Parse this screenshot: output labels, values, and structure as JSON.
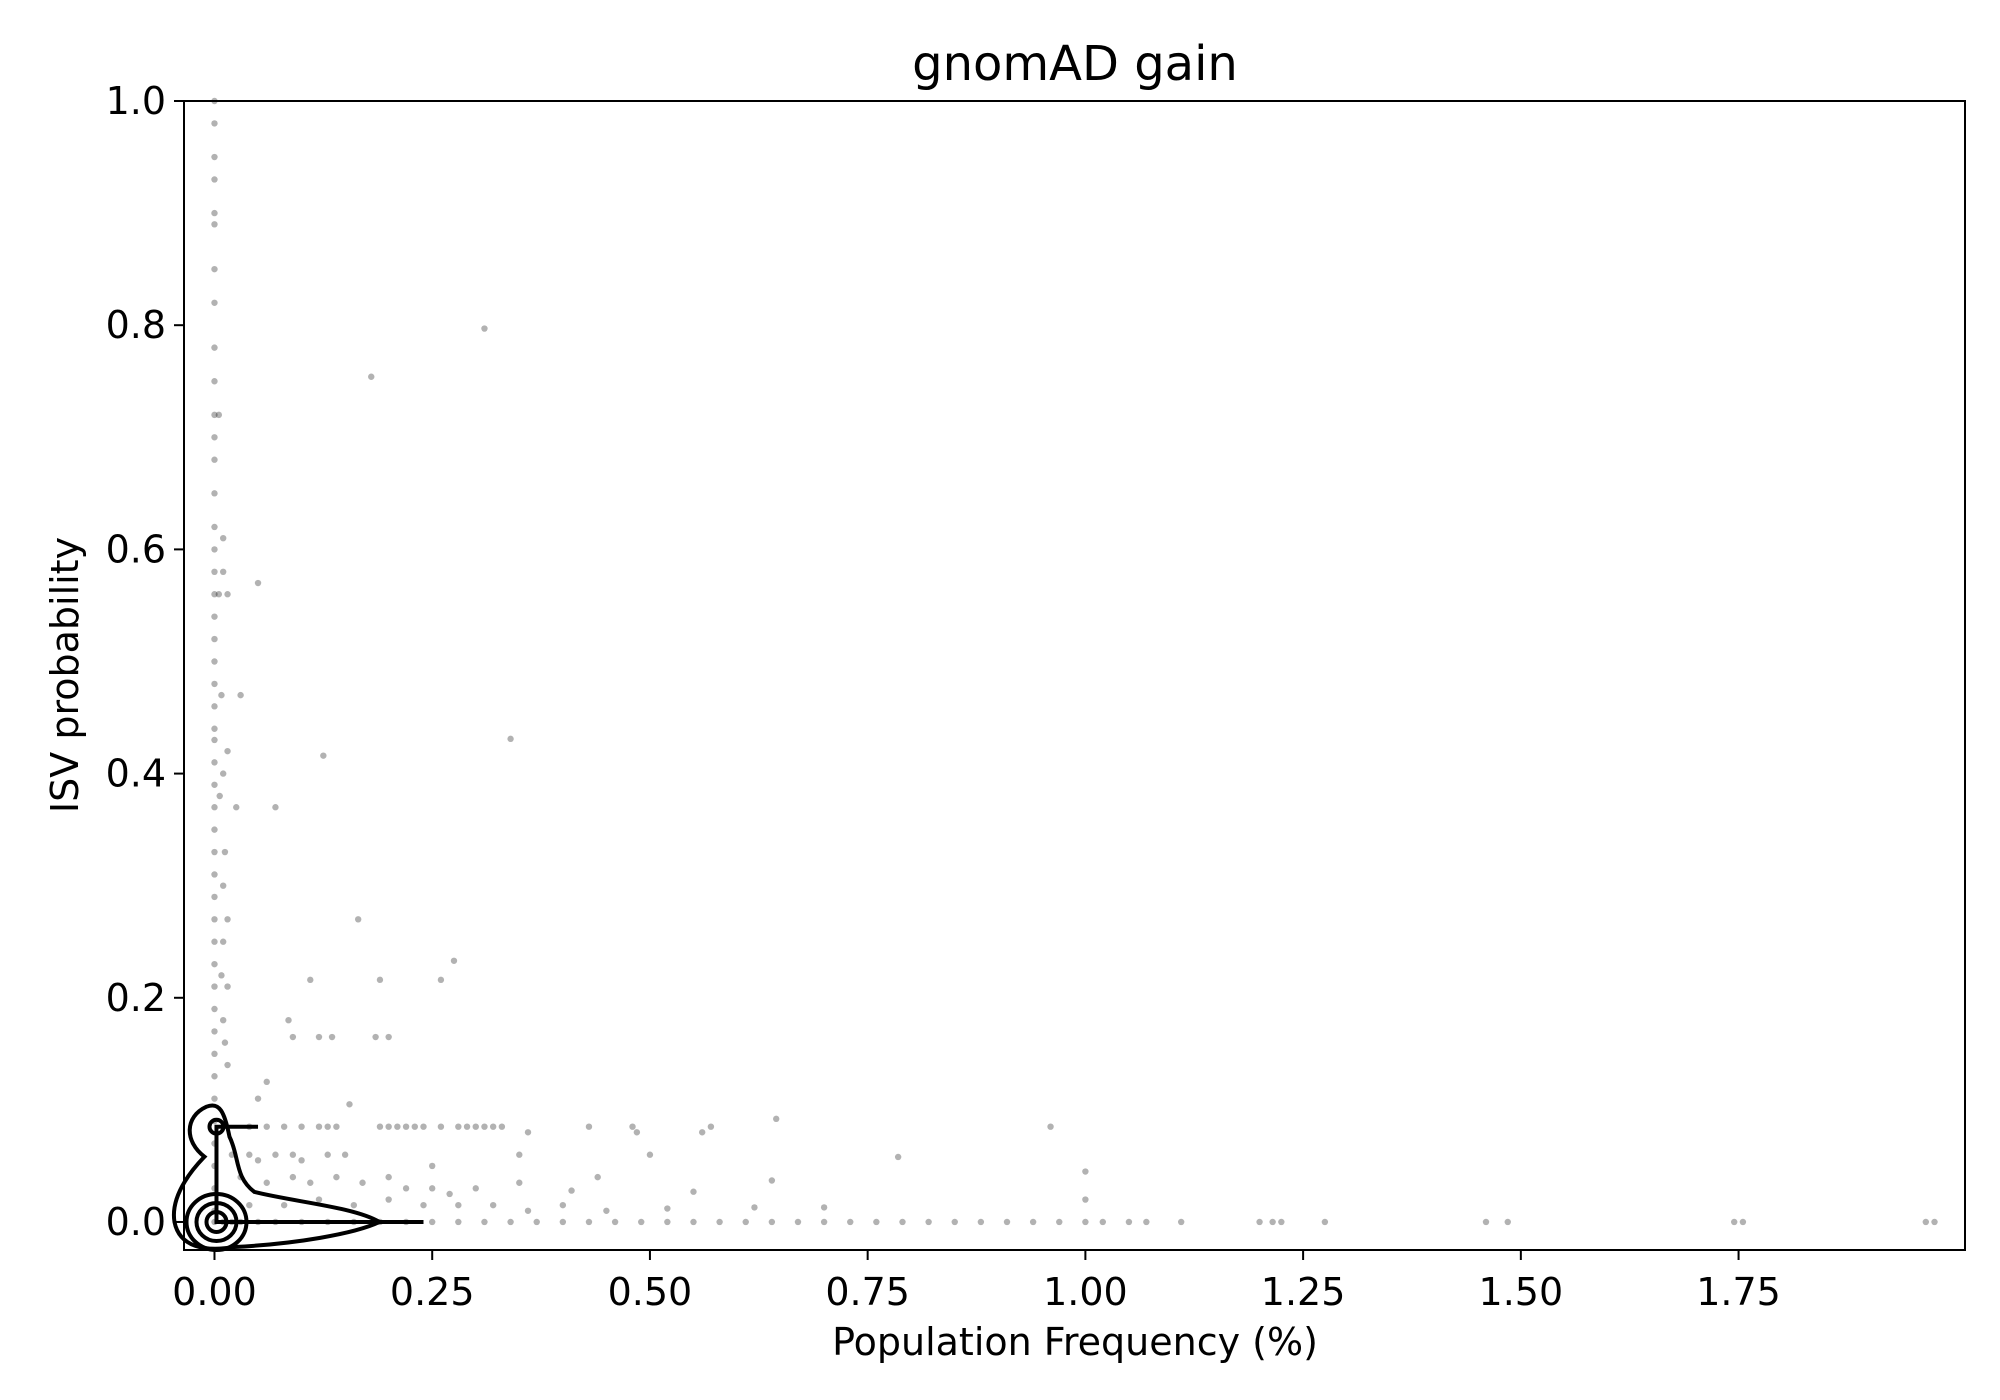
{
  "chart_data": {
    "type": "scatter",
    "title": "gnomAD gain",
    "xlabel": "Population Frequency (%)",
    "ylabel": "ISV probability",
    "xlim": [
      -0.035,
      2.01
    ],
    "ylim": [
      -0.025,
      1.0
    ],
    "xticks": [
      0.0,
      0.25,
      0.5,
      0.75,
      1.0,
      1.25,
      1.5,
      1.75
    ],
    "xtick_labels": [
      "0.00",
      "0.25",
      "0.50",
      "0.75",
      "1.00",
      "1.25",
      "1.50",
      "1.75"
    ],
    "yticks": [
      0.0,
      0.2,
      0.4,
      0.6,
      0.8,
      1.0
    ],
    "ytick_labels": [
      "0.0",
      "0.2",
      "0.4",
      "0.6",
      "0.8",
      "1.0"
    ],
    "grid": false,
    "legend": "none",
    "marker_color": "#000000",
    "marker_opacity": 0.3,
    "overlay": "kde-contours",
    "points": [
      [
        0.0,
        1.0
      ],
      [
        0.0,
        0.98
      ],
      [
        0.0,
        0.95
      ],
      [
        0.0,
        0.93
      ],
      [
        0.0,
        0.9
      ],
      [
        0.0,
        0.89
      ],
      [
        0.0,
        0.85
      ],
      [
        0.0,
        0.82
      ],
      [
        0.0,
        0.78
      ],
      [
        0.0,
        0.75
      ],
      [
        0.0,
        0.72
      ],
      [
        0.0,
        0.7
      ],
      [
        0.0,
        0.68
      ],
      [
        0.0,
        0.65
      ],
      [
        0.0,
        0.62
      ],
      [
        0.0,
        0.6
      ],
      [
        0.0,
        0.58
      ],
      [
        0.0,
        0.56
      ],
      [
        0.0,
        0.54
      ],
      [
        0.0,
        0.52
      ],
      [
        0.0,
        0.5
      ],
      [
        0.0,
        0.48
      ],
      [
        0.0,
        0.46
      ],
      [
        0.0,
        0.44
      ],
      [
        0.0,
        0.43
      ],
      [
        0.0,
        0.41
      ],
      [
        0.0,
        0.39
      ],
      [
        0.0,
        0.37
      ],
      [
        0.0,
        0.35
      ],
      [
        0.0,
        0.33
      ],
      [
        0.0,
        0.31
      ],
      [
        0.0,
        0.29
      ],
      [
        0.0,
        0.27
      ],
      [
        0.0,
        0.25
      ],
      [
        0.0,
        0.23
      ],
      [
        0.0,
        0.21
      ],
      [
        0.0,
        0.19
      ],
      [
        0.0,
        0.17
      ],
      [
        0.0,
        0.15
      ],
      [
        0.0,
        0.13
      ],
      [
        0.0,
        0.11
      ],
      [
        0.0,
        0.09
      ],
      [
        0.0,
        0.07
      ],
      [
        0.0,
        0.05
      ],
      [
        0.0,
        0.03
      ],
      [
        0.0,
        0.01
      ],
      [
        0.005,
        0.72
      ],
      [
        0.005,
        0.56
      ],
      [
        0.01,
        0.61
      ],
      [
        0.008,
        0.47
      ],
      [
        0.01,
        0.58
      ],
      [
        0.015,
        0.56
      ],
      [
        0.01,
        0.4
      ],
      [
        0.015,
        0.42
      ],
      [
        0.006,
        0.38
      ],
      [
        0.012,
        0.33
      ],
      [
        0.01,
        0.3
      ],
      [
        0.015,
        0.27
      ],
      [
        0.01,
        0.25
      ],
      [
        0.008,
        0.22
      ],
      [
        0.015,
        0.21
      ],
      [
        0.01,
        0.18
      ],
      [
        0.012,
        0.16
      ],
      [
        0.015,
        0.14
      ],
      [
        0.03,
        0.47
      ],
      [
        0.025,
        0.37
      ],
      [
        0.05,
        0.57
      ],
      [
        0.07,
        0.37
      ],
      [
        0.31,
        0.797
      ],
      [
        0.18,
        0.754
      ],
      [
        0.125,
        0.416
      ],
      [
        0.34,
        0.431
      ],
      [
        0.165,
        0.27
      ],
      [
        0.275,
        0.233
      ],
      [
        0.26,
        0.216
      ],
      [
        0.19,
        0.216
      ],
      [
        0.11,
        0.216
      ],
      [
        0.085,
        0.18
      ],
      [
        0.09,
        0.165
      ],
      [
        0.12,
        0.165
      ],
      [
        0.135,
        0.165
      ],
      [
        0.185,
        0.165
      ],
      [
        0.2,
        0.165
      ],
      [
        0.06,
        0.125
      ],
      [
        0.05,
        0.11
      ],
      [
        0.155,
        0.105
      ],
      [
        0.04,
        0.085
      ],
      [
        0.06,
        0.085
      ],
      [
        0.08,
        0.085
      ],
      [
        0.1,
        0.085
      ],
      [
        0.12,
        0.085
      ],
      [
        0.13,
        0.085
      ],
      [
        0.14,
        0.085
      ],
      [
        0.19,
        0.085
      ],
      [
        0.2,
        0.085
      ],
      [
        0.21,
        0.085
      ],
      [
        0.22,
        0.085
      ],
      [
        0.23,
        0.085
      ],
      [
        0.24,
        0.085
      ],
      [
        0.26,
        0.085
      ],
      [
        0.28,
        0.085
      ],
      [
        0.29,
        0.085
      ],
      [
        0.3,
        0.085
      ],
      [
        0.31,
        0.085
      ],
      [
        0.32,
        0.085
      ],
      [
        0.33,
        0.085
      ],
      [
        0.36,
        0.08
      ],
      [
        0.43,
        0.085
      ],
      [
        0.48,
        0.085
      ],
      [
        0.485,
        0.08
      ],
      [
        0.56,
        0.08
      ],
      [
        0.57,
        0.085
      ],
      [
        0.645,
        0.092
      ],
      [
        0.96,
        0.085
      ],
      [
        0.02,
        0.06
      ],
      [
        0.04,
        0.06
      ],
      [
        0.05,
        0.055
      ],
      [
        0.07,
        0.06
      ],
      [
        0.09,
        0.06
      ],
      [
        0.1,
        0.055
      ],
      [
        0.13,
        0.06
      ],
      [
        0.15,
        0.06
      ],
      [
        0.25,
        0.05
      ],
      [
        0.35,
        0.06
      ],
      [
        0.5,
        0.06
      ],
      [
        0.785,
        0.058
      ],
      [
        0.03,
        0.04
      ],
      [
        0.06,
        0.035
      ],
      [
        0.09,
        0.04
      ],
      [
        0.11,
        0.035
      ],
      [
        0.14,
        0.04
      ],
      [
        0.17,
        0.035
      ],
      [
        0.2,
        0.04
      ],
      [
        0.22,
        0.03
      ],
      [
        0.25,
        0.03
      ],
      [
        0.27,
        0.025
      ],
      [
        0.3,
        0.03
      ],
      [
        0.35,
        0.035
      ],
      [
        0.41,
        0.028
      ],
      [
        0.44,
        0.04
      ],
      [
        0.55,
        0.027
      ],
      [
        0.64,
        0.037
      ],
      [
        1.0,
        0.045
      ],
      [
        0.04,
        0.015
      ],
      [
        0.08,
        0.015
      ],
      [
        0.12,
        0.02
      ],
      [
        0.16,
        0.015
      ],
      [
        0.2,
        0.02
      ],
      [
        0.24,
        0.015
      ],
      [
        0.28,
        0.015
      ],
      [
        0.32,
        0.015
      ],
      [
        0.36,
        0.01
      ],
      [
        0.4,
        0.015
      ],
      [
        0.45,
        0.01
      ],
      [
        0.52,
        0.012
      ],
      [
        0.62,
        0.013
      ],
      [
        0.7,
        0.013
      ],
      [
        1.0,
        0.02
      ],
      [
        0.0,
        0.0
      ],
      [
        0.01,
        0.0
      ],
      [
        0.02,
        0.0
      ],
      [
        0.03,
        0.0
      ],
      [
        0.05,
        0.0
      ],
      [
        0.07,
        0.0
      ],
      [
        0.1,
        0.0
      ],
      [
        0.13,
        0.0
      ],
      [
        0.16,
        0.0
      ],
      [
        0.19,
        0.0
      ],
      [
        0.22,
        0.0
      ],
      [
        0.25,
        0.0
      ],
      [
        0.28,
        0.0
      ],
      [
        0.31,
        0.0
      ],
      [
        0.34,
        0.0
      ],
      [
        0.37,
        0.0
      ],
      [
        0.4,
        0.0
      ],
      [
        0.43,
        0.0
      ],
      [
        0.46,
        0.0
      ],
      [
        0.49,
        0.0
      ],
      [
        0.52,
        0.0
      ],
      [
        0.55,
        0.0
      ],
      [
        0.58,
        0.0
      ],
      [
        0.61,
        0.0
      ],
      [
        0.64,
        0.0
      ],
      [
        0.67,
        0.0
      ],
      [
        0.7,
        0.0
      ],
      [
        0.73,
        0.0
      ],
      [
        0.76,
        0.0
      ],
      [
        0.79,
        0.0
      ],
      [
        0.82,
        0.0
      ],
      [
        0.85,
        0.0
      ],
      [
        0.88,
        0.0
      ],
      [
        0.91,
        0.0
      ],
      [
        0.94,
        0.0
      ],
      [
        0.97,
        0.0
      ],
      [
        1.0,
        0.0
      ],
      [
        1.02,
        0.0
      ],
      [
        1.05,
        0.0
      ],
      [
        1.07,
        0.0
      ],
      [
        1.11,
        0.0
      ],
      [
        1.2,
        0.0
      ],
      [
        1.215,
        0.0
      ],
      [
        1.225,
        0.0
      ],
      [
        1.275,
        0.0
      ],
      [
        1.46,
        0.0
      ],
      [
        1.485,
        0.0
      ],
      [
        1.745,
        0.0
      ],
      [
        1.755,
        0.0
      ],
      [
        1.965,
        0.0
      ],
      [
        1.975,
        0.0
      ]
    ]
  }
}
